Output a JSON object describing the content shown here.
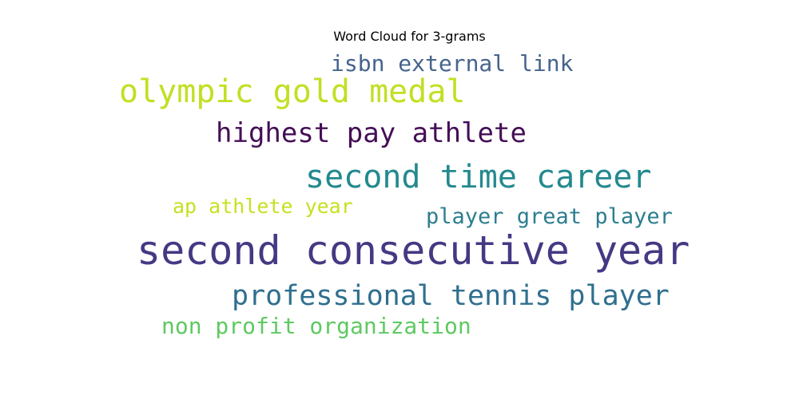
{
  "chart_data": {
    "type": "wordcloud",
    "title": "Word Cloud for 3-grams",
    "words": [
      {
        "text": "isbn external link",
        "color": "#46648c"
      },
      {
        "text": "olympic gold medal",
        "color": "#c2df23"
      },
      {
        "text": "highest pay athlete",
        "color": "#440f55"
      },
      {
        "text": "second time career",
        "color": "#23898e"
      },
      {
        "text": "ap athlete year",
        "color": "#c8e020"
      },
      {
        "text": "player great player",
        "color": "#2b7e8e"
      },
      {
        "text": "second consecutive year",
        "color": "#443983"
      },
      {
        "text": "professional tennis player",
        "color": "#2f6f8e"
      },
      {
        "text": "non profit organization",
        "color": "#5ec962"
      }
    ]
  }
}
